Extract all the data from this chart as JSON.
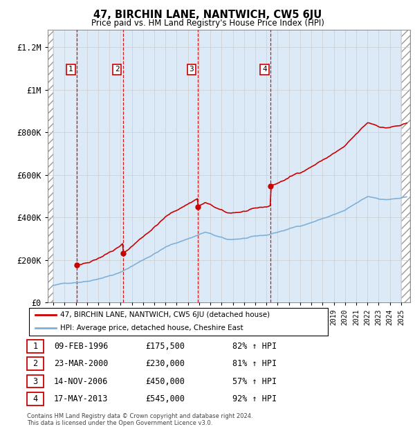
{
  "title": "47, BIRCHIN LANE, NANTWICH, CW5 6JU",
  "subtitle": "Price paid vs. HM Land Registry's House Price Index (HPI)",
  "legend_line1": "47, BIRCHIN LANE, NANTWICH, CW5 6JU (detached house)",
  "legend_line2": "HPI: Average price, detached house, Cheshire East",
  "footer1": "Contains HM Land Registry data © Crown copyright and database right 2024.",
  "footer2": "This data is licensed under the Open Government Licence v3.0.",
  "sales": [
    {
      "num": 1,
      "date": "09-FEB-1996",
      "x": 1996.11,
      "price": 175500,
      "pct": "82%",
      "dir": "↑"
    },
    {
      "num": 2,
      "date": "23-MAR-2000",
      "x": 2000.23,
      "price": 230000,
      "pct": "81%",
      "dir": "↑"
    },
    {
      "num": 3,
      "date": "14-NOV-2006",
      "x": 2006.87,
      "price": 450000,
      "pct": "57%",
      "dir": "↑"
    },
    {
      "num": 4,
      "date": "17-MAY-2013",
      "x": 2013.38,
      "price": 545000,
      "pct": "92%",
      "dir": "↑"
    }
  ],
  "hpi_color": "#7fb0d8",
  "sale_color": "#cc0000",
  "dashed_color": "#cc0000",
  "box_color": "#cc0000",
  "blue_bg_color": "#e0ecf8",
  "owned_bg_color": "#daeaf8",
  "ylim": [
    0,
    1280000
  ],
  "yticks": [
    0,
    200000,
    400000,
    600000,
    800000,
    1000000,
    1200000
  ],
  "ytick_labels": [
    "£0",
    "£200K",
    "£400K",
    "£600K",
    "£800K",
    "£1M",
    "£1.2M"
  ],
  "xmin": 1993.5,
  "xmax": 2025.8,
  "chart_start_year": 1994,
  "chart_end_year": 2025
}
